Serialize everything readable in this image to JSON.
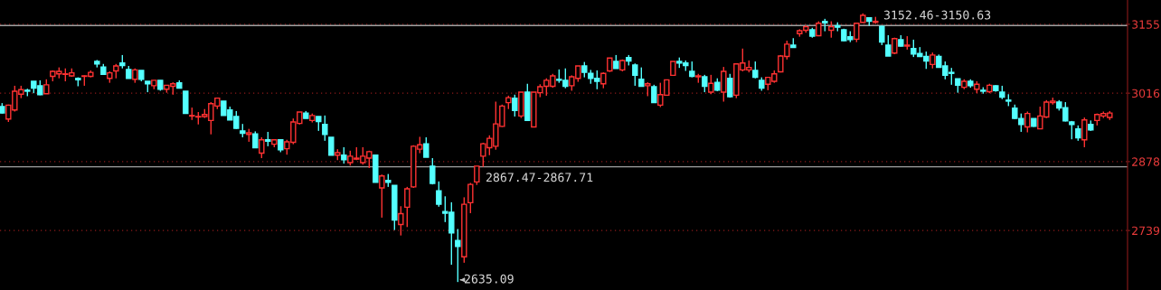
{
  "chart_data": {
    "type": "candlestick",
    "categories": [
      null,
      null,
      null,
      null,
      null,
      null,
      null,
      null,
      null,
      null,
      null,
      null,
      null,
      null,
      null,
      null,
      null,
      null,
      null,
      null,
      null,
      null,
      null,
      null,
      null,
      null,
      null,
      null,
      null,
      null,
      null,
      null,
      null,
      null,
      null,
      null,
      null,
      null,
      null,
      null,
      null,
      null,
      null,
      null,
      null,
      null,
      null,
      null,
      null,
      null,
      null,
      null,
      null,
      null,
      null,
      null,
      null,
      null,
      null,
      null,
      null,
      null,
      null,
      null,
      null,
      null,
      null,
      null,
      null,
      null,
      null,
      null,
      null,
      null,
      null,
      null,
      null,
      null,
      null,
      null,
      null,
      null,
      null,
      null,
      null,
      null,
      null,
      null,
      null,
      null,
      null,
      null,
      null,
      null,
      null,
      null,
      null,
      null,
      null,
      null,
      null,
      null,
      null,
      null,
      null,
      null,
      null,
      null,
      null,
      null,
      null,
      null,
      null,
      null,
      null,
      null,
      null,
      null,
      null,
      null,
      null,
      null,
      null,
      null,
      null,
      null,
      null,
      null,
      null,
      null,
      null,
      null,
      null,
      null,
      null,
      null,
      null,
      null,
      null,
      null,
      null,
      null,
      null,
      null,
      null,
      null,
      null,
      null,
      null,
      null,
      null,
      null,
      null,
      null,
      null,
      null,
      null,
      null,
      null,
      null,
      null,
      null,
      null,
      null,
      null,
      null,
      null,
      null,
      null,
      null,
      null,
      null,
      null,
      null,
      null,
      null
    ],
    "ohlc": [
      [
        2989,
        2996,
        2975,
        2976
      ],
      [
        2964,
        2993,
        2958,
        2992
      ],
      [
        2982,
        3031,
        2979,
        3020
      ],
      [
        3014,
        3031,
        3006,
        3023
      ],
      [
        3022,
        3025,
        3010,
        3020
      ],
      [
        3040,
        3040,
        3016,
        3026
      ],
      [
        3031,
        3042,
        3012,
        3013
      ],
      [
        3015,
        3044,
        3015,
        3033
      ],
      [
        3050,
        3062,
        3040,
        3060
      ],
      [
        3055,
        3068,
        3046,
        3060
      ],
      [
        3054,
        3066,
        3040,
        3055
      ],
      [
        3051,
        3066,
        3049,
        3057
      ],
      [
        3046,
        3048,
        3030,
        3043
      ],
      [
        3050,
        3052,
        3031,
        3051
      ],
      [
        3050,
        3062,
        3048,
        3058
      ],
      [
        3080,
        3083,
        3068,
        3075
      ],
      [
        3069,
        3075,
        3054,
        3054
      ],
      [
        3046,
        3060,
        3037,
        3057
      ],
      [
        3061,
        3075,
        3046,
        3071
      ],
      [
        3077,
        3093,
        3066,
        3072
      ],
      [
        3064,
        3071,
        3046,
        3046
      ],
      [
        3044,
        3066,
        3037,
        3063
      ],
      [
        3062,
        3062,
        3040,
        3044
      ],
      [
        3040,
        3040,
        3018,
        3035
      ],
      [
        3031,
        3042,
        3024,
        3042
      ],
      [
        3042,
        3042,
        3021,
        3024
      ],
      [
        3024,
        3032,
        3017,
        3032
      ],
      [
        3030,
        3038,
        3013,
        3035
      ],
      [
        3037,
        3042,
        3026,
        3026
      ],
      [
        3020,
        3020,
        2975,
        2975
      ],
      [
        2970,
        2987,
        2962,
        2971
      ],
      [
        2968,
        2978,
        2953,
        2969
      ],
      [
        2969,
        2984,
        2966,
        2973
      ],
      [
        2961,
        2998,
        2933,
        2995
      ],
      [
        2990,
        3007,
        2984,
        3006
      ],
      [
        3000,
        3000,
        2971,
        2971
      ],
      [
        2982,
        2989,
        2962,
        2962
      ],
      [
        2969,
        2980,
        2944,
        2945
      ],
      [
        2940,
        2954,
        2927,
        2935
      ],
      [
        2933,
        2944,
        2918,
        2936
      ],
      [
        2934,
        2939,
        2906,
        2906
      ],
      [
        2895,
        2927,
        2885,
        2922
      ],
      [
        2922,
        2938,
        2909,
        2919
      ],
      [
        2913,
        2923,
        2907,
        2922
      ],
      [
        2922,
        2922,
        2897,
        2902
      ],
      [
        2904,
        2922,
        2892,
        2918
      ],
      [
        2917,
        2965,
        2913,
        2958
      ],
      [
        2955,
        2978,
        2953,
        2978
      ],
      [
        2976,
        2980,
        2965,
        2965
      ],
      [
        2961,
        2975,
        2957,
        2971
      ],
      [
        2969,
        2969,
        2940,
        2959
      ],
      [
        2953,
        2971,
        2920,
        2933
      ],
      [
        2927,
        2927,
        2891,
        2891
      ],
      [
        2891,
        2903,
        2881,
        2896
      ],
      [
        2891,
        2907,
        2874,
        2882
      ],
      [
        2876,
        2900,
        2870,
        2889
      ],
      [
        2883,
        2907,
        2881,
        2885
      ],
      [
        2876,
        2907,
        2872,
        2889
      ],
      [
        2885,
        2900,
        2865,
        2898
      ],
      [
        2891,
        2891,
        2836,
        2836
      ],
      [
        2825,
        2852,
        2765,
        2849
      ],
      [
        2840,
        2853,
        2827,
        2836
      ],
      [
        2830,
        2830,
        2740,
        2760
      ],
      [
        2751,
        2788,
        2729,
        2773
      ],
      [
        2786,
        2827,
        2746,
        2823
      ],
      [
        2827,
        2911,
        2825,
        2909
      ],
      [
        2903,
        2928,
        2895,
        2912
      ],
      [
        2914,
        2927,
        2887,
        2887
      ],
      [
        2869,
        2885,
        2832,
        2834
      ],
      [
        2819,
        2838,
        2787,
        2792
      ],
      [
        2777,
        2808,
        2756,
        2774
      ],
      [
        2776,
        2796,
        2670,
        2734
      ],
      [
        2719,
        2742,
        2635.09,
        2707
      ],
      [
        2686,
        2806,
        2674,
        2792
      ],
      [
        2795,
        2835,
        2774,
        2832
      ],
      [
        2837,
        2869,
        2831,
        2869
      ],
      [
        2889,
        2916,
        2867.47,
        2914
      ],
      [
        2906,
        2931,
        2891,
        2925
      ],
      [
        2909,
        2999,
        2902,
        2954
      ],
      [
        2949,
        2993,
        2948,
        2990
      ],
      [
        2997,
        3011,
        2984,
        3007
      ],
      [
        3006,
        3013,
        2969,
        2981
      ],
      [
        2970,
        3018,
        2966,
        3018
      ],
      [
        3018,
        3035,
        2961,
        2961
      ],
      [
        2948,
        3018,
        2948,
        3018
      ],
      [
        3017,
        3034,
        3008,
        3029
      ],
      [
        3030,
        3046,
        3011,
        3042
      ],
      [
        3030,
        3055,
        3027,
        3051
      ],
      [
        3044,
        3064,
        3037,
        3042
      ],
      [
        3042,
        3066,
        3026,
        3030
      ],
      [
        3031,
        3052,
        3021,
        3049
      ],
      [
        3046,
        3071,
        3039,
        3071
      ],
      [
        3071,
        3079,
        3048,
        3058
      ],
      [
        3056,
        3063,
        3035,
        3046
      ],
      [
        3046,
        3062,
        3024,
        3040
      ],
      [
        3035,
        3058,
        3026,
        3056
      ],
      [
        3061,
        3087,
        3059,
        3087
      ],
      [
        3080,
        3093,
        3066,
        3066
      ],
      [
        3063,
        3084,
        3060,
        3082
      ],
      [
        3088,
        3093,
        3072,
        3081
      ],
      [
        3073,
        3076,
        3031,
        3052
      ],
      [
        3044,
        3068,
        3030,
        3030
      ],
      [
        3031,
        3038,
        3010,
        3035
      ],
      [
        3029,
        3033,
        2997,
        2997
      ],
      [
        2992,
        3037,
        2988,
        3013
      ],
      [
        3012,
        3043,
        3012,
        3043
      ],
      [
        3052,
        3080,
        3052,
        3080
      ],
      [
        3080,
        3088,
        3067,
        3077
      ],
      [
        3077,
        3082,
        3061,
        3072
      ],
      [
        3060,
        3080,
        3048,
        3050
      ],
      [
        3049,
        3055,
        3037,
        3051
      ],
      [
        3049,
        3053,
        3018,
        3030
      ],
      [
        3018,
        3053,
        3014,
        3036
      ],
      [
        3038,
        3046,
        3020,
        3022
      ],
      [
        3018,
        3069,
        2999,
        3060
      ],
      [
        3046,
        3055,
        3007,
        3009
      ],
      [
        3012,
        3075,
        3006,
        3075
      ],
      [
        3063,
        3106,
        3060,
        3077
      ],
      [
        3063,
        3082,
        3058,
        3068
      ],
      [
        3062,
        3080,
        3046,
        3048
      ],
      [
        3042,
        3048,
        3021,
        3026
      ],
      [
        3034,
        3048,
        3022,
        3048
      ],
      [
        3040,
        3062,
        3037,
        3055
      ],
      [
        3059,
        3093,
        3058,
        3091
      ],
      [
        3090,
        3122,
        3084,
        3115
      ],
      [
        3113,
        3127,
        3108,
        3108
      ],
      [
        3136,
        3145,
        3130,
        3142
      ],
      [
        3143,
        3153,
        3138,
        3150
      ],
      [
        3144,
        3148,
        3128,
        3131
      ],
      [
        3132,
        3161,
        3131,
        3157
      ],
      [
        3161,
        3166,
        3141,
        3158
      ],
      [
        3143,
        3161,
        3128,
        3150
      ],
      [
        3152,
        3159,
        3141,
        3149
      ],
      [
        3144,
        3146,
        3121,
        3122
      ],
      [
        3130,
        3141,
        3119,
        3124
      ],
      [
        3125,
        3157,
        3119,
        3157
      ],
      [
        3159,
        3177,
        3159,
        3173
      ],
      [
        3168,
        3168,
        3152,
        3161
      ],
      [
        3159,
        3170,
        3156,
        3161
      ],
      [
        3150.63,
        3152.46,
        3113,
        3119
      ],
      [
        3113,
        3133,
        3091,
        3091
      ],
      [
        3097,
        3128,
        3095,
        3126
      ],
      [
        3124,
        3133,
        3110,
        3111
      ],
      [
        3111,
        3131,
        3104,
        3113
      ],
      [
        3106,
        3124,
        3089,
        3095
      ],
      [
        3096,
        3109,
        3089,
        3090
      ],
      [
        3090,
        3100,
        3065,
        3081
      ],
      [
        3074,
        3098,
        3066,
        3093
      ],
      [
        3090,
        3094,
        3068,
        3068
      ],
      [
        3071,
        3080,
        3044,
        3052
      ],
      [
        3058,
        3067,
        3033,
        3056
      ],
      [
        3045,
        3045,
        3017,
        3032
      ],
      [
        3028,
        3044,
        3024,
        3040
      ],
      [
        3040,
        3044,
        3027,
        3031
      ],
      [
        3024,
        3040,
        3016,
        3034
      ],
      [
        3022,
        3028,
        3015,
        3020
      ],
      [
        3019,
        3035,
        3016,
        3032
      ],
      [
        3031,
        3032,
        3019,
        3021
      ],
      [
        3018,
        3031,
        3004,
        3008
      ],
      [
        3002,
        3014,
        2990,
        3000
      ],
      [
        2986,
        2993,
        2964,
        2965
      ],
      [
        2965,
        2975,
        2938,
        2953
      ],
      [
        2948,
        2979,
        2937,
        2975
      ],
      [
        2965,
        2965,
        2948,
        2949
      ],
      [
        2944,
        2989,
        2944,
        2970
      ],
      [
        2968,
        3002,
        2966,
        2998
      ],
      [
        2997,
        3007,
        2993,
        3000
      ],
      [
        2998,
        3002,
        2981,
        2986
      ],
      [
        2987,
        2998,
        2959,
        2960
      ],
      [
        2958,
        2960,
        2923,
        2953
      ],
      [
        2944,
        2951,
        2920,
        2926
      ],
      [
        2922,
        2967,
        2907,
        2962
      ],
      [
        2953,
        2961,
        2940,
        2942
      ],
      [
        2961,
        2975,
        2951,
        2973
      ],
      [
        2970,
        2979,
        2966,
        2975
      ],
      [
        2967,
        2980,
        2962,
        2976
      ]
    ],
    "colors": [
      "#54ffff",
      "#ff3232",
      "#ff3232",
      "#ff3232",
      "#54ffff",
      "#54ffff",
      "#54ffff",
      "#ff3232",
      "#ff3232",
      "#ff3232",
      "#ff3232",
      "#ff3232",
      "#54ffff",
      "#ff3232",
      "#ff3232",
      "#54ffff",
      "#54ffff",
      "#ff3232",
      "#ff3232",
      "#54ffff",
      "#54ffff",
      "#ff3232",
      "#54ffff",
      "#54ffff",
      "#ff3232",
      "#54ffff",
      "#ff3232",
      "#ff3232",
      "#54ffff",
      "#54ffff",
      "#ff3232",
      "#ff3232",
      "#ff3232",
      "#ff3232",
      "#ff3232",
      "#54ffff",
      "#54ffff",
      "#54ffff",
      "#54ffff",
      "#ff3232",
      "#54ffff",
      "#ff3232",
      "#54ffff",
      "#ff3232",
      "#54ffff",
      "#ff3232",
      "#ff3232",
      "#ff3232",
      "#54ffff",
      "#ff3232",
      "#54ffff",
      "#54ffff",
      "#54ffff",
      "#ff3232",
      "#54ffff",
      "#ff3232",
      "#ff3232",
      "#ff3232",
      "#ff3232",
      "#54ffff",
      "#ff3232",
      "#54ffff",
      "#54ffff",
      "#ff3232",
      "#ff3232",
      "#ff3232",
      "#ff3232",
      "#54ffff",
      "#54ffff",
      "#54ffff",
      "#54ffff",
      "#54ffff",
      "#54ffff",
      "#ff3232",
      "#ff3232",
      "#ff3232",
      "#ff3232",
      "#ff3232",
      "#ff3232",
      "#ff3232",
      "#ff3232",
      "#54ffff",
      "#ff3232",
      "#54ffff",
      "#ff3232",
      "#ff3232",
      "#ff3232",
      "#ff3232",
      "#54ffff",
      "#54ffff",
      "#ff3232",
      "#ff3232",
      "#54ffff",
      "#54ffff",
      "#54ffff",
      "#ff3232",
      "#ff3232",
      "#54ffff",
      "#ff3232",
      "#54ffff",
      "#54ffff",
      "#54ffff",
      "#ff3232",
      "#54ffff",
      "#ff3232",
      "#ff3232",
      "#ff3232",
      "#54ffff",
      "#54ffff",
      "#54ffff",
      "#ff3232",
      "#54ffff",
      "#ff3232",
      "#54ffff",
      "#ff3232",
      "#54ffff",
      "#ff3232",
      "#ff3232",
      "#ff3232",
      "#54ffff",
      "#54ffff",
      "#ff3232",
      "#ff3232",
      "#ff3232",
      "#ff3232",
      "#54ffff",
      "#ff3232",
      "#ff3232",
      "#54ffff",
      "#ff3232",
      "#54ffff",
      "#ff3232",
      "#54ffff",
      "#54ffff",
      "#54ffff",
      "#ff3232",
      "#ff3232",
      "#54ffff",
      "#ff3232",
      "#54ffff",
      "#54ffff",
      "#ff3232",
      "#54ffff",
      "#ff3232",
      "#54ffff",
      "#54ffff",
      "#54ffff",
      "#ff3232",
      "#54ffff",
      "#54ffff",
      "#54ffff",
      "#54ffff",
      "#ff3232",
      "#54ffff",
      "#ff3232",
      "#54ffff",
      "#ff3232",
      "#54ffff",
      "#54ffff",
      "#54ffff",
      "#54ffff",
      "#54ffff",
      "#ff3232",
      "#54ffff",
      "#ff3232",
      "#ff3232",
      "#ff3232",
      "#54ffff",
      "#54ffff",
      "#54ffff",
      "#54ffff",
      "#ff3232",
      "#54ffff",
      "#ff3232",
      "#ff3232",
      "#ff3232"
    ],
    "ylim": [
      2619,
      3204
    ],
    "yticks": [
      2739,
      2878,
      3016,
      3155
    ],
    "grid": "y",
    "ref_lines": [
      {
        "axis": "y",
        "value": 3152.46,
        "color": "#a0a0a0"
      },
      {
        "axis": "y",
        "value": 2867.47,
        "color": "#a0a0a0"
      }
    ],
    "annotations": [
      "3152.46-3150.63",
      "2867.47-2867.71",
      "2635.09"
    ]
  }
}
